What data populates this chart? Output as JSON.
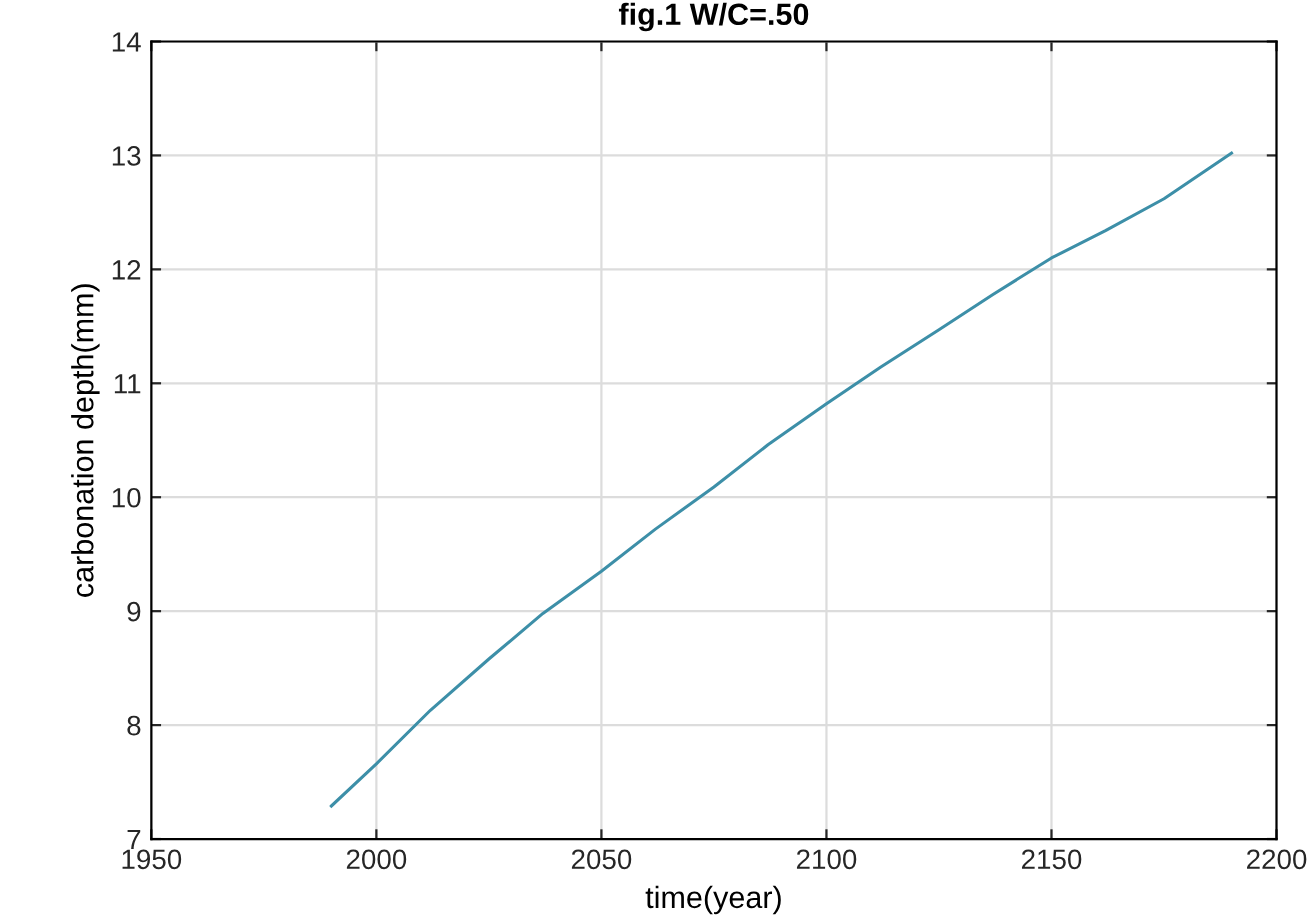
{
  "chart_data": {
    "type": "line",
    "title": "fig.1 W/C=.50",
    "xlabel": "time(year)",
    "ylabel": "carbonation depth(mm)",
    "x": [
      1990,
      2000,
      2012,
      2025,
      2037,
      2050,
      2062,
      2075,
      2087,
      2100,
      2112,
      2125,
      2137,
      2150,
      2162,
      2175,
      2190
    ],
    "series": [
      {
        "color": "#3d8fa8",
        "values": [
          7.29,
          7.66,
          8.13,
          8.58,
          8.98,
          9.35,
          9.72,
          10.09,
          10.46,
          10.82,
          11.14,
          11.47,
          11.78,
          12.1,
          12.34,
          12.62,
          13.02
        ]
      }
    ],
    "xlim": [
      1950,
      2200
    ],
    "xticks": [
      1950,
      2000,
      2050,
      2100,
      2150,
      2200
    ],
    "ylim": [
      7,
      14
    ],
    "yticks": [
      7,
      8,
      9,
      10,
      11,
      12,
      13,
      14
    ],
    "grid": true,
    "marker": "none",
    "line_style": "solid"
  }
}
